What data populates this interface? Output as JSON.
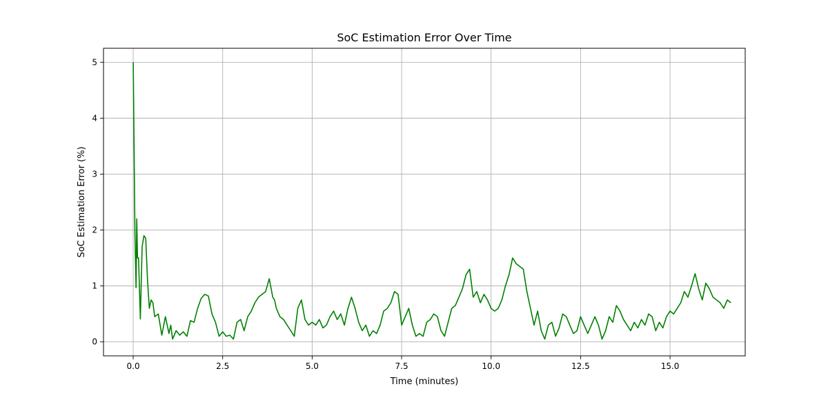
{
  "chart_data": {
    "type": "line",
    "title": "SoC Estimation Error Over Time",
    "xlabel": "Time (minutes)",
    "ylabel": "SoC Estimation Error (%)",
    "xlim": [
      -0.83,
      17.1
    ],
    "ylim": [
      -0.25,
      5.25
    ],
    "xticks": [
      0.0,
      2.5,
      5.0,
      7.5,
      10.0,
      12.5,
      15.0
    ],
    "xtick_labels": [
      "0.0",
      "2.5",
      "5.0",
      "7.5",
      "10.0",
      "12.5",
      "15.0"
    ],
    "yticks": [
      0,
      1,
      2,
      3,
      4,
      5
    ],
    "ytick_labels": [
      "0",
      "1",
      "2",
      "3",
      "4",
      "5"
    ],
    "grid": true,
    "series": [
      {
        "color": "#008000",
        "x": [
          0.0,
          0.05,
          0.08,
          0.1,
          0.12,
          0.15,
          0.2,
          0.25,
          0.3,
          0.35,
          0.4,
          0.45,
          0.5,
          0.55,
          0.6,
          0.7,
          0.8,
          0.9,
          1.0,
          1.05,
          1.1,
          1.2,
          1.3,
          1.4,
          1.5,
          1.6,
          1.7,
          1.8,
          1.9,
          2.0,
          2.1,
          2.2,
          2.3,
          2.4,
          2.5,
          2.6,
          2.7,
          2.8,
          2.9,
          3.0,
          3.1,
          3.2,
          3.3,
          3.4,
          3.5,
          3.6,
          3.7,
          3.8,
          3.9,
          3.95,
          4.0,
          4.1,
          4.2,
          4.3,
          4.4,
          4.5,
          4.6,
          4.7,
          4.8,
          4.9,
          5.0,
          5.1,
          5.2,
          5.3,
          5.4,
          5.5,
          5.6,
          5.7,
          5.8,
          5.9,
          6.0,
          6.1,
          6.2,
          6.3,
          6.4,
          6.5,
          6.6,
          6.7,
          6.8,
          6.9,
          7.0,
          7.1,
          7.2,
          7.3,
          7.4,
          7.5,
          7.6,
          7.7,
          7.8,
          7.9,
          8.0,
          8.1,
          8.2,
          8.3,
          8.4,
          8.5,
          8.6,
          8.7,
          8.8,
          8.9,
          9.0,
          9.1,
          9.2,
          9.3,
          9.4,
          9.5,
          9.6,
          9.7,
          9.8,
          9.9,
          10.0,
          10.1,
          10.2,
          10.3,
          10.4,
          10.5,
          10.6,
          10.7,
          10.8,
          10.9,
          11.0,
          11.1,
          11.2,
          11.3,
          11.4,
          11.5,
          11.6,
          11.7,
          11.8,
          11.9,
          12.0,
          12.1,
          12.2,
          12.3,
          12.4,
          12.5,
          12.6,
          12.7,
          12.8,
          12.9,
          13.0,
          13.1,
          13.2,
          13.3,
          13.4,
          13.5,
          13.6,
          13.7,
          13.8,
          13.9,
          14.0,
          14.1,
          14.2,
          14.3,
          14.4,
          14.5,
          14.6,
          14.7,
          14.8,
          14.9,
          15.0,
          15.1,
          15.2,
          15.3,
          15.4,
          15.5,
          15.6,
          15.7,
          15.8,
          15.9,
          16.0,
          16.1,
          16.2,
          16.3,
          16.4,
          16.5,
          16.6,
          16.7
        ],
        "y": [
          5.0,
          1.9,
          0.97,
          2.2,
          1.5,
          1.5,
          0.41,
          1.7,
          1.9,
          1.85,
          1.1,
          0.6,
          0.75,
          0.7,
          0.45,
          0.5,
          0.12,
          0.45,
          0.15,
          0.3,
          0.05,
          0.2,
          0.12,
          0.18,
          0.1,
          0.38,
          0.35,
          0.6,
          0.78,
          0.85,
          0.82,
          0.5,
          0.35,
          0.1,
          0.18,
          0.1,
          0.12,
          0.05,
          0.35,
          0.4,
          0.2,
          0.45,
          0.55,
          0.7,
          0.8,
          0.85,
          0.9,
          1.13,
          0.8,
          0.75,
          0.6,
          0.45,
          0.4,
          0.3,
          0.2,
          0.1,
          0.6,
          0.75,
          0.4,
          0.3,
          0.35,
          0.3,
          0.4,
          0.25,
          0.3,
          0.45,
          0.55,
          0.4,
          0.5,
          0.3,
          0.6,
          0.8,
          0.6,
          0.35,
          0.2,
          0.3,
          0.1,
          0.2,
          0.15,
          0.3,
          0.55,
          0.6,
          0.7,
          0.9,
          0.85,
          0.3,
          0.45,
          0.6,
          0.3,
          0.1,
          0.15,
          0.1,
          0.35,
          0.4,
          0.5,
          0.45,
          0.2,
          0.1,
          0.35,
          0.6,
          0.65,
          0.8,
          0.95,
          1.2,
          1.3,
          0.8,
          0.9,
          0.7,
          0.85,
          0.75,
          0.6,
          0.55,
          0.6,
          0.75,
          1.0,
          1.2,
          1.5,
          1.4,
          1.35,
          1.3,
          0.9,
          0.6,
          0.3,
          0.55,
          0.2,
          0.05,
          0.3,
          0.35,
          0.1,
          0.25,
          0.5,
          0.45,
          0.3,
          0.15,
          0.2,
          0.45,
          0.3,
          0.15,
          0.3,
          0.45,
          0.3,
          0.05,
          0.2,
          0.45,
          0.35,
          0.65,
          0.55,
          0.4,
          0.3,
          0.2,
          0.35,
          0.25,
          0.4,
          0.3,
          0.5,
          0.45,
          0.2,
          0.35,
          0.25,
          0.45,
          0.55,
          0.5,
          0.6,
          0.7,
          0.9,
          0.8,
          1.0,
          1.22,
          0.95,
          0.75,
          1.05,
          0.95,
          0.8,
          0.75,
          0.7,
          0.6,
          0.75,
          0.7
        ]
      }
    ]
  }
}
